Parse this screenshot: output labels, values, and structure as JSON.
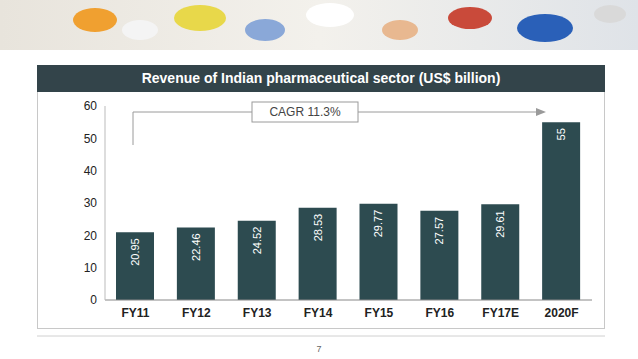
{
  "chart_data": {
    "type": "bar",
    "title": "Revenue of Indian pharmaceutical sector (US$ billion)",
    "categories": [
      "FY11",
      "FY12",
      "FY13",
      "FY14",
      "FY15",
      "FY16",
      "FY17E",
      "2020F"
    ],
    "values": [
      20.95,
      22.46,
      24.52,
      28.53,
      29.77,
      27.57,
      29.61,
      55
    ],
    "color": "#2d4b50",
    "ylim": [
      0,
      60
    ],
    "yticks": [
      0,
      10,
      20,
      30,
      40,
      50,
      60
    ],
    "grid": false,
    "data_labels": true,
    "annotations": [
      "CAGR 11.3%"
    ]
  },
  "footer": {
    "page_number": "7"
  }
}
